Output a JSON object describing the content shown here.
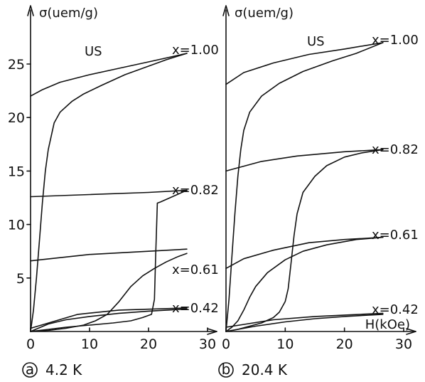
{
  "chart_data": [
    {
      "type": "line",
      "panel_marker": "a",
      "caption": "4.2 K",
      "ylabel": "σ(uem/g)",
      "xlabel": "",
      "xlim": [
        0,
        30
      ],
      "ylim": [
        0,
        28
      ],
      "xticks": [
        0,
        10,
        20,
        30
      ],
      "yticks": [
        5,
        10,
        15,
        20,
        25
      ],
      "annotations": [
        "US"
      ],
      "series": [
        {
          "name": "x=1.00",
          "initial": {
            "x": [
              0,
              0.5,
              1,
              1.5,
              2,
              2.5,
              3,
              4,
              5,
              7,
              9,
              12,
              16,
              20,
              23,
              26.5
            ],
            "y": [
              0,
              2,
              5,
              8.5,
              12,
              15,
              17,
              19.5,
              20.5,
              21.5,
              22.2,
              23,
              24,
              24.8,
              25.4,
              26
            ]
          },
          "upper": {
            "x": [
              26.5,
              20,
              15,
              10,
              5,
              2,
              0
            ],
            "y": [
              26,
              25.2,
              24.6,
              24,
              23.3,
              22.6,
              22
            ]
          }
        },
        {
          "name": "x=0.82",
          "initial": {
            "x": [
              0,
              3,
              6,
              10,
              14,
              17,
              19,
              20.5,
              21,
              21.2,
              21.5,
              22,
              26.5
            ],
            "y": [
              0,
              0.2,
              0.4,
              0.6,
              0.8,
              1.0,
              1.3,
              1.6,
              3,
              7,
              12,
              12.1,
              13.2
            ]
          },
          "upper": {
            "x": [
              26.5,
              20,
              10,
              0
            ],
            "y": [
              13.2,
              13,
              12.8,
              12.6
            ]
          }
        },
        {
          "name": "x=0.61",
          "initial": {
            "x": [
              0,
              3,
              6,
              9,
              11,
              13,
              15,
              17,
              19,
              21,
              23,
              25,
              26.5
            ],
            "y": [
              0,
              0.1,
              0.3,
              0.6,
              1.0,
              1.6,
              2.8,
              4.2,
              5.2,
              5.9,
              6.5,
              7.0,
              7.3
            ]
          },
          "upper": {
            "x": [
              26.5,
              20,
              10,
              0
            ],
            "y": [
              7.7,
              7.5,
              7.2,
              6.6
            ]
          }
        },
        {
          "name": "x=0.42",
          "initial": {
            "x": [
              0,
              3,
              6,
              10,
              15,
              20,
              26.5
            ],
            "y": [
              0,
              0.7,
              1.1,
              1.4,
              1.7,
              1.9,
              2.1
            ]
          },
          "upper": {
            "x": [
              26.5,
              15,
              8,
              0
            ],
            "y": [
              2.2,
              2.0,
              1.6,
              0.3
            ]
          }
        }
      ]
    },
    {
      "type": "line",
      "panel_marker": "b",
      "caption": "20.4 K",
      "ylabel": "σ(uem/g)",
      "xlabel": "H(kOe)",
      "xlim": [
        0,
        30
      ],
      "ylim": [
        0,
        28
      ],
      "xticks": [
        0,
        10,
        20,
        30
      ],
      "annotations": [
        "US"
      ],
      "series": [
        {
          "name": "x=1.00",
          "initial": {
            "x": [
              0,
              0.5,
              1,
              1.5,
              2,
              2.5,
              3,
              4,
              6,
              9,
              13,
              18,
              22,
              26.5
            ],
            "y": [
              0,
              3,
              7,
              11,
              14.5,
              17,
              18.8,
              20.5,
              22,
              23.2,
              24.3,
              25.3,
              26,
              27
            ]
          },
          "upper": {
            "x": [
              26.5,
              20,
              14,
              8,
              3,
              0
            ],
            "y": [
              27,
              26.4,
              25.9,
              25.1,
              24.2,
              23.1
            ]
          }
        },
        {
          "name": "x=0.82",
          "initial": {
            "x": [
              0,
              2,
              4,
              6,
              8,
              9,
              10,
              10.5,
              11,
              11.5,
              12,
              13,
              15,
              17,
              20,
              23,
              26.5
            ],
            "y": [
              0,
              0.2,
              0.5,
              0.8,
              1.3,
              1.8,
              2.8,
              4,
              6.5,
              9,
              11,
              13,
              14.5,
              15.5,
              16.3,
              16.7,
              17
            ]
          },
          "upper": {
            "x": [
              26.5,
              20,
              12,
              6,
              0
            ],
            "y": [
              17,
              16.8,
              16.4,
              15.9,
              15
            ]
          }
        },
        {
          "name": "x=0.61",
          "initial": {
            "x": [
              0,
              1,
              2,
              3,
              4,
              5,
              7,
              10,
              13,
              17,
              22,
              26.5
            ],
            "y": [
              0,
              0.4,
              1,
              2,
              3.2,
              4.2,
              5.5,
              6.7,
              7.5,
              8.1,
              8.6,
              8.8
            ]
          },
          "upper": {
            "x": [
              26.5,
              20,
              14,
              8,
              3,
              0
            ],
            "y": [
              8.8,
              8.6,
              8.3,
              7.6,
              6.8,
              5.9
            ]
          }
        },
        {
          "name": "x=0.42",
          "initial": {
            "x": [
              0,
              5,
              10,
              15,
              20,
              26.5
            ],
            "y": [
              0,
              0.5,
              0.9,
              1.2,
              1.4,
              1.6
            ]
          },
          "upper": {
            "x": [
              26.5,
              15,
              8,
              0
            ],
            "y": [
              1.7,
              1.4,
              1.1,
              0.4
            ]
          }
        }
      ]
    }
  ]
}
